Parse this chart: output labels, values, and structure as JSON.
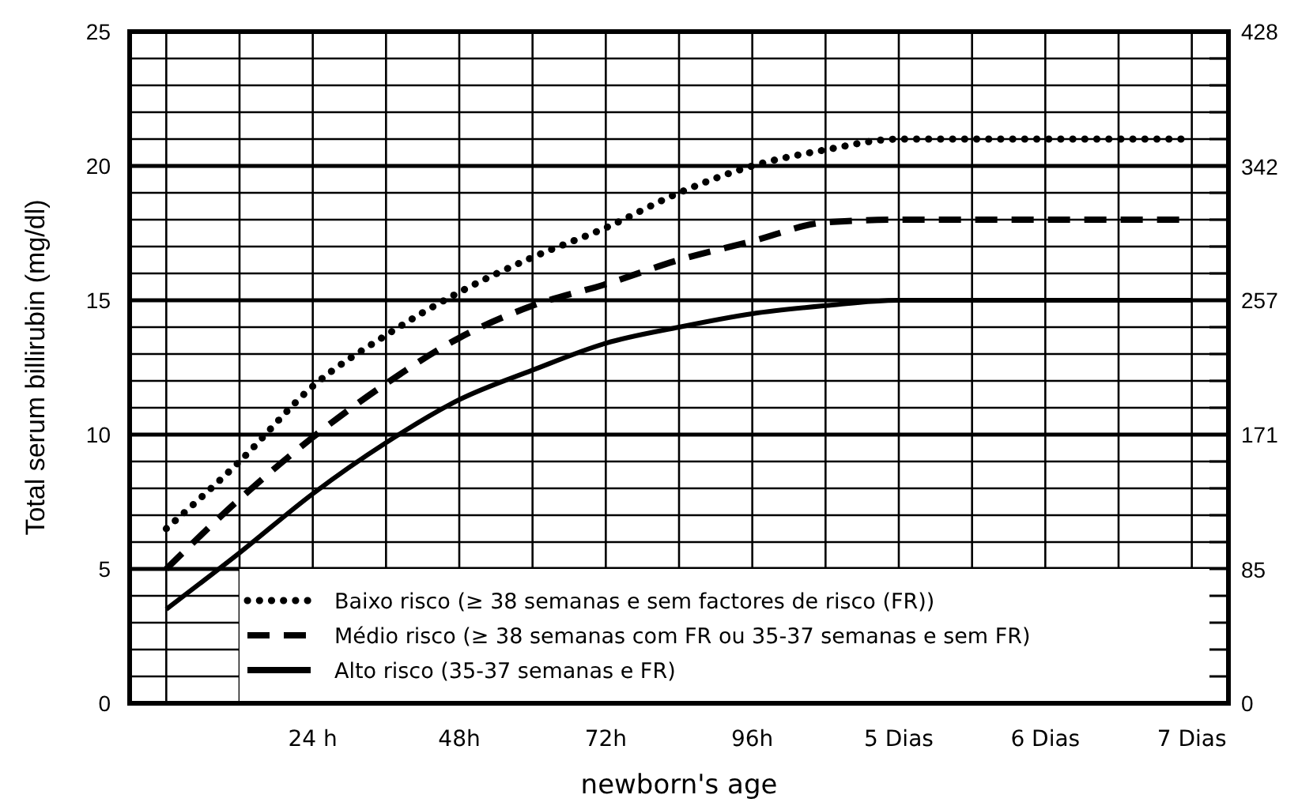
{
  "chart_data": {
    "type": "line",
    "xlabel": "newborn's age",
    "ylabel": "Total serum billirubin (mg/dl)",
    "ylim": [
      0,
      25
    ],
    "y2lim": [
      0,
      428
    ],
    "categories": [
      null,
      null,
      "24 h",
      null,
      "48h",
      null,
      "72h",
      null,
      "96h",
      null,
      "5 Dias",
      null,
      "6 Dias",
      null,
      "7 Dias"
    ],
    "yticks": [
      0,
      {
        "value": 1,
        "label": null
      },
      {
        "value": 2,
        "label": null
      },
      {
        "value": 3,
        "label": null
      },
      {
        "value": 4,
        "label": null
      },
      5,
      {
        "value": 6,
        "label": null
      },
      {
        "value": 7,
        "label": null
      },
      {
        "value": 8,
        "label": null
      },
      {
        "value": 9,
        "label": null
      },
      10,
      {
        "value": 11,
        "label": null
      },
      {
        "value": 12,
        "label": null
      },
      {
        "value": 13,
        "label": null
      },
      {
        "value": 14,
        "label": null
      },
      15,
      {
        "value": 16,
        "label": null
      },
      {
        "value": 17,
        "label": null
      },
      {
        "value": 18,
        "label": null
      },
      {
        "value": 19,
        "label": null
      },
      20,
      {
        "value": 21,
        "label": null
      },
      {
        "value": 22,
        "label": null
      },
      {
        "value": 23,
        "label": null
      },
      {
        "value": 24,
        "label": null
      },
      25
    ],
    "y2ticks": [
      0,
      85,
      171,
      257,
      342,
      428
    ],
    "grid": true,
    "legend": "bottom",
    "series": [
      {
        "name": "Baixo risco (≥ 38 semanas e sem factores de risco (FR))",
        "color": "#000000",
        "line_style": "dotted",
        "values": [
          6.5,
          9.0,
          11.8,
          13.7,
          15.3,
          16.6,
          17.7,
          19.0,
          20.0,
          20.6,
          21,
          21,
          21,
          21,
          21
        ]
      },
      {
        "name": "Médio risco (≥ 38 semanas com FR ou 35-37 semanas e sem FR)",
        "color": "#000000",
        "line_style": "dashed",
        "values": [
          5.0,
          7.6,
          9.9,
          11.9,
          13.6,
          14.8,
          15.6,
          16.5,
          17.2,
          17.9,
          18,
          18,
          18,
          18,
          18
        ]
      },
      {
        "name": "Alto risco (35-37 semanas e FR)",
        "color": "#000000",
        "line_style": "solid",
        "values": [
          3.5,
          5.6,
          7.8,
          9.7,
          11.3,
          12.4,
          13.4,
          14.0,
          14.5,
          14.8,
          15,
          15,
          15,
          15,
          15
        ]
      }
    ]
  }
}
